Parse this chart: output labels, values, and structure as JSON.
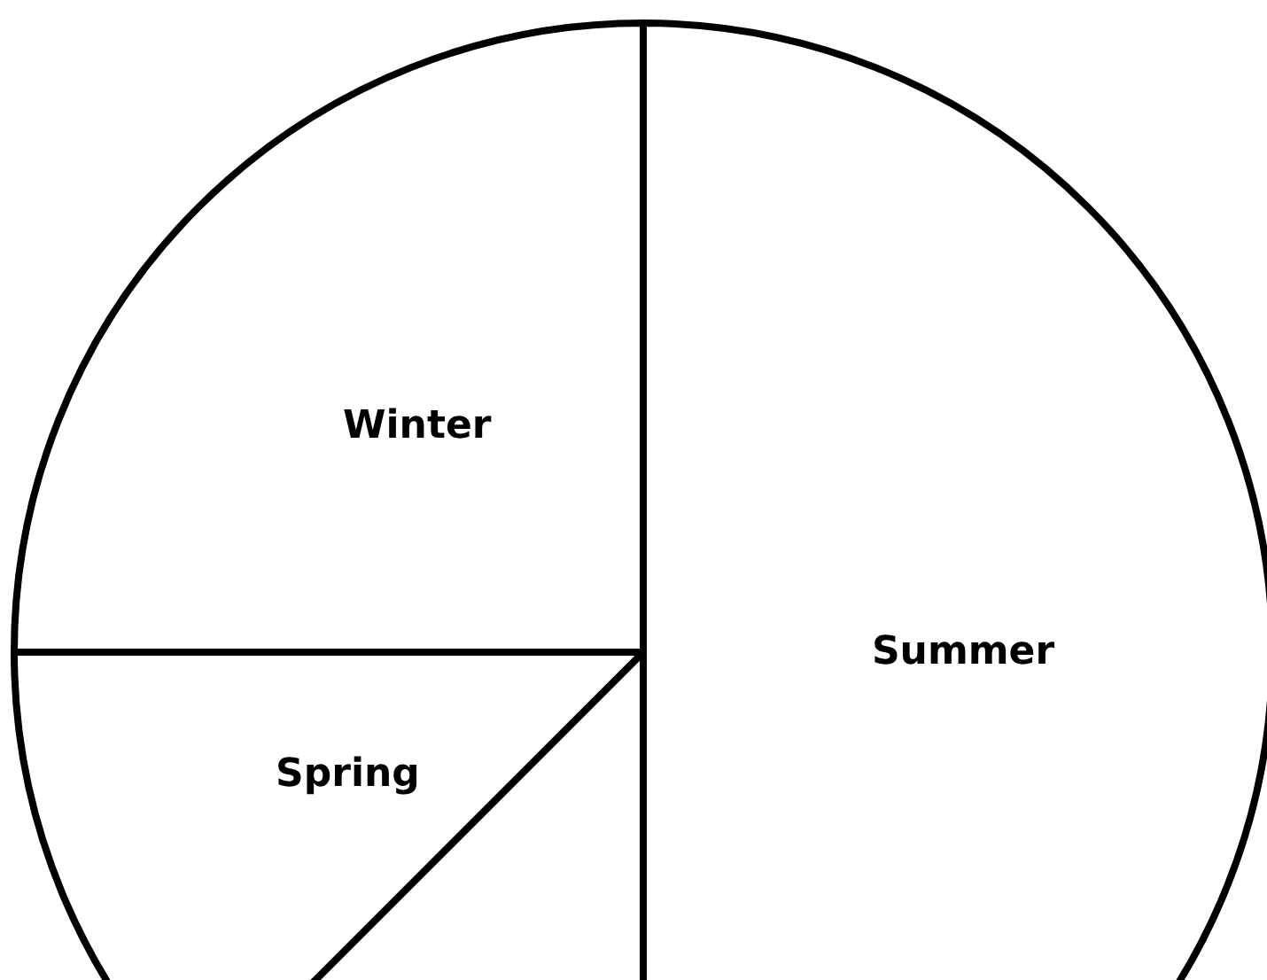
{
  "chart_data": {
    "type": "pie",
    "categories": [
      "Summer",
      null,
      "Spring",
      "Winter"
    ],
    "values": [
      50,
      12.5,
      12.5,
      25
    ],
    "colors": [
      "#ffffff",
      "#ffffff",
      "#ffffff",
      "#ffffff"
    ],
    "legend": false
  }
}
